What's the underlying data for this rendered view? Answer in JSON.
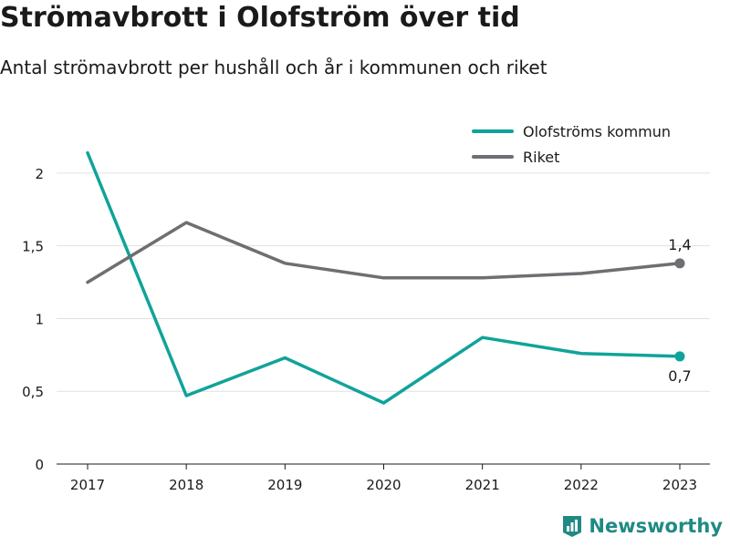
{
  "title": "Strömavbrott i Olofström över tid",
  "subtitle": "Antal strömavbrott per hushåll och år i kommunen och riket",
  "brand": {
    "name": "Newsworthy",
    "icon": "newsworthy-logo-icon",
    "color": "#1f8a83"
  },
  "chart_data": {
    "type": "line",
    "x": [
      "2017",
      "2018",
      "2019",
      "2020",
      "2021",
      "2022",
      "2023"
    ],
    "y_ticks": [
      "0",
      "0,5",
      "1",
      "1,5",
      "2"
    ],
    "ylim": [
      0,
      2.25
    ],
    "grid": true,
    "legend_placement": "top-right",
    "series": [
      {
        "name": "Olofströms kommun",
        "color": "#10a39a",
        "values": [
          2.14,
          0.47,
          0.73,
          0.42,
          0.87,
          0.76,
          0.74
        ],
        "end_label": "0,7"
      },
      {
        "name": "Riket",
        "color": "#6e6e73",
        "values": [
          1.25,
          1.66,
          1.38,
          1.28,
          1.28,
          1.31,
          1.38
        ],
        "end_label": "1,4"
      }
    ]
  }
}
